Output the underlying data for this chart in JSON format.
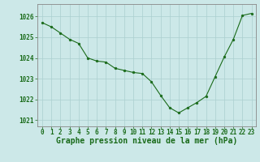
{
  "x": [
    0,
    1,
    2,
    3,
    4,
    5,
    6,
    7,
    8,
    9,
    10,
    11,
    12,
    13,
    14,
    15,
    16,
    17,
    18,
    19,
    20,
    21,
    22,
    23
  ],
  "y": [
    1025.7,
    1025.5,
    1025.2,
    1024.9,
    1024.7,
    1024.0,
    1023.85,
    1023.8,
    1023.5,
    1023.4,
    1023.3,
    1023.25,
    1022.85,
    1022.2,
    1021.6,
    1021.35,
    1021.6,
    1021.85,
    1022.15,
    1023.1,
    1024.05,
    1024.9,
    1026.05,
    1026.15
  ],
  "line_color": "#1a6b1a",
  "marker_color": "#1a6b1a",
  "bg_color": "#cce8e8",
  "grid_color": "#aacfcf",
  "xlabel": "Graphe pression niveau de la mer (hPa)",
  "ylim_min": 1020.7,
  "ylim_max": 1026.6,
  "yticks": [
    1021,
    1022,
    1023,
    1024,
    1025,
    1026
  ],
  "xticks": [
    0,
    1,
    2,
    3,
    4,
    5,
    6,
    7,
    8,
    9,
    10,
    11,
    12,
    13,
    14,
    15,
    16,
    17,
    18,
    19,
    20,
    21,
    22,
    23
  ],
  "xtick_labels": [
    "0",
    "1",
    "2",
    "3",
    "4",
    "5",
    "6",
    "7",
    "8",
    "9",
    "10",
    "11",
    "12",
    "13",
    "14",
    "15",
    "16",
    "17",
    "18",
    "19",
    "20",
    "21",
    "22",
    "23"
  ],
  "font_color": "#1a6b1a",
  "xlabel_fontsize": 7.0,
  "tick_fontsize": 5.5
}
